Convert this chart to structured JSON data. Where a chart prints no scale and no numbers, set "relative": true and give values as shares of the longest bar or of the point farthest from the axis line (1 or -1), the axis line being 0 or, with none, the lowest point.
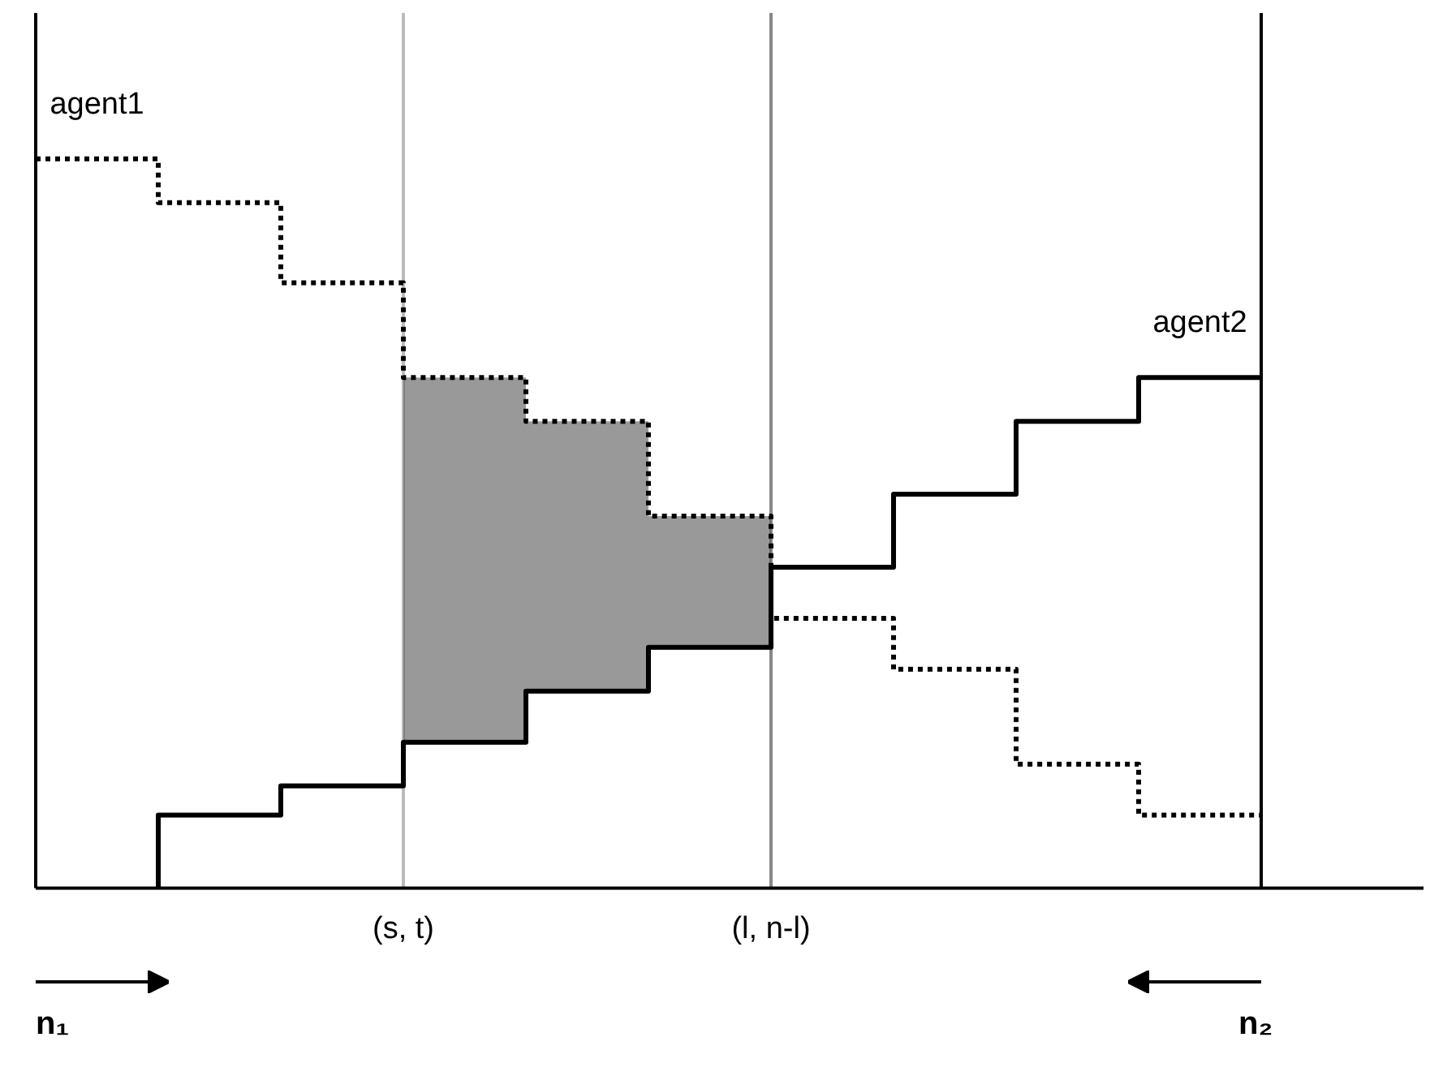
{
  "chart_data": {
    "type": "step",
    "relative": true,
    "categories": [
      null,
      null,
      null,
      "(s, t)",
      null,
      null,
      "(l, n-l)",
      null,
      null,
      null,
      null
    ],
    "tick_labels": "x",
    "legend": false,
    "series": [
      {
        "name": "agent1",
        "color": "#000000",
        "line_style": "dotted",
        "values": [
          1,
          1,
          0.94,
          0.83,
          0.7,
          0.64,
          0.51,
          0.37,
          0.3,
          0.17,
          0.1
        ]
      },
      {
        "name": "agent2",
        "color": "#000000",
        "line_style": "solid",
        "values": [
          null,
          0,
          0.1,
          0.14,
          0.2,
          0.27,
          0.33,
          0.44,
          0.54,
          0.64,
          0.7
        ]
      },
      {
        "type": "area",
        "color": "#555555",
        "values": [
          null,
          null,
          null,
          0.7,
          0.7,
          0.64,
          0.51,
          null,
          null,
          null,
          null
        ]
      }
    ],
    "ref_lines": [
      {
        "axis": "x",
        "value": "(s, t)",
        "color": "#bbbbbb"
      },
      {
        "axis": "x",
        "value": "(l, n-l)",
        "color": "#888888"
      }
    ],
    "annotations": [
      "n₁",
      "n₂"
    ]
  }
}
